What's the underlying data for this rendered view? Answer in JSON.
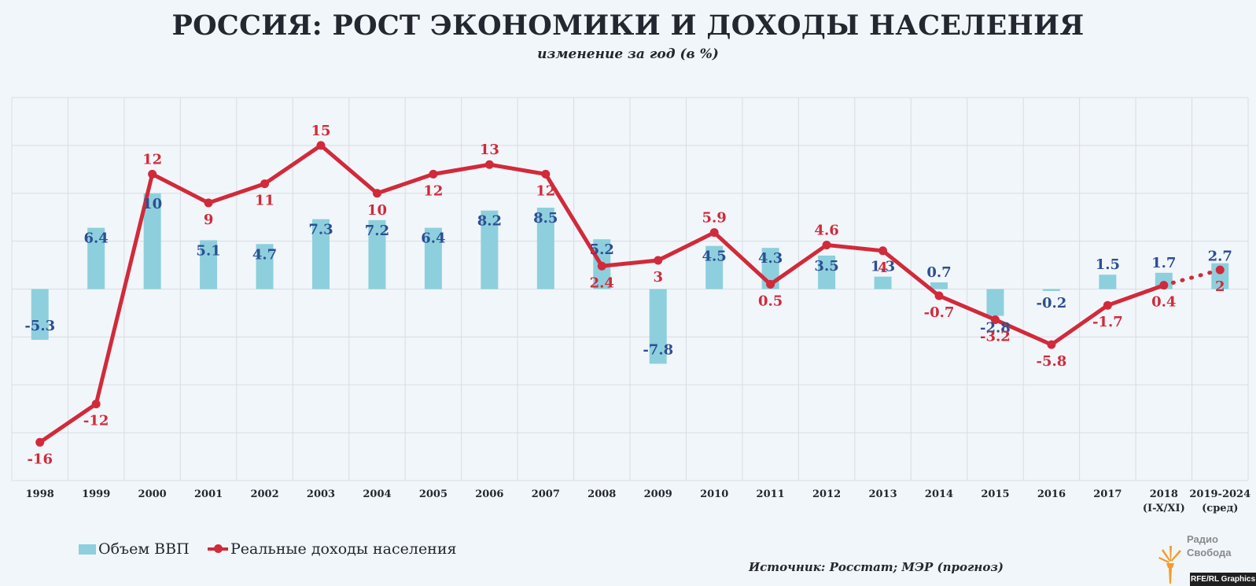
{
  "title": "РОССИЯ: РОСТ ЭКОНОМИКИ И ДОХОДЫ НАСЕЛЕНИЯ",
  "subtitle": "изменение за год (в %)",
  "legend": {
    "bars_label": "Объем ВВП",
    "line_label": "Реальные доходы населения"
  },
  "source": "Источник: Росстат; МЭР (прогноз)",
  "logo": {
    "line1": "Радио",
    "line2": "Свобода"
  },
  "credit": "RFE/RL Graphics",
  "colors": {
    "bar": "#8ecfdd",
    "bar_label": "#2b4f93",
    "line": "#d12a3a",
    "grid": "#d7dde3",
    "logo": "#f59b2a"
  },
  "chart_data": {
    "type": "bar+line",
    "title": "РОССИЯ: РОСТ ЭКОНОМИКИ И ДОХОДЫ НАСЕЛЕНИЯ",
    "subtitle": "изменение за год (в %)",
    "categories": [
      [
        "1998"
      ],
      [
        "1999"
      ],
      [
        "2000"
      ],
      [
        "2001"
      ],
      [
        "2002"
      ],
      [
        "2003"
      ],
      [
        "2004"
      ],
      [
        "2005"
      ],
      [
        "2006"
      ],
      [
        "2007"
      ],
      [
        "2008"
      ],
      [
        "2009"
      ],
      [
        "2010"
      ],
      [
        "2011"
      ],
      [
        "2012"
      ],
      [
        "2013"
      ],
      [
        "2014"
      ],
      [
        "2015"
      ],
      [
        "2016"
      ],
      [
        "2017"
      ],
      [
        "2018",
        "(I-X/XI)"
      ],
      [
        "2019-2024",
        "(сред)"
      ]
    ],
    "series": [
      {
        "name": "Объем ВВП",
        "type": "bar",
        "values": [
          -5.3,
          6.4,
          10,
          5.1,
          4.7,
          7.3,
          7.2,
          6.4,
          8.2,
          8.5,
          5.2,
          -7.8,
          4.5,
          4.3,
          3.5,
          1.3,
          0.7,
          -2.8,
          -0.2,
          1.5,
          1.7,
          2.7
        ],
        "labels": [
          "-5.3",
          "6.4",
          "10",
          "5.1",
          "4.7",
          "7.3",
          "7.2",
          "6.4",
          "8.2",
          "8.5",
          "5.2",
          "-7.8",
          "4.5",
          "4.3",
          "3.5",
          "1.3",
          "0.7",
          "-2.8",
          "-0.2",
          "1.5",
          "1.7",
          "2.7"
        ]
      },
      {
        "name": "Реальные доходы населения",
        "type": "line",
        "values": [
          -16,
          -12,
          12,
          9,
          11,
          15,
          10,
          12,
          13,
          12,
          2.4,
          3,
          5.9,
          0.5,
          4.6,
          4,
          -0.7,
          -3.2,
          -5.8,
          -1.7,
          0.4,
          2
        ],
        "labels": [
          "-16",
          "-12",
          "12",
          "9",
          "11",
          "15",
          "10",
          "12",
          "13",
          "12",
          "2.4",
          "3",
          "5.9",
          "0.5",
          "4.6",
          "4",
          "-0.7",
          "-3.2",
          "-5.8",
          "-1.7",
          "0.4",
          "2"
        ],
        "dotted_last_segment": true
      }
    ],
    "ylim": [
      -20,
      20
    ],
    "grid": true,
    "legend_position": "bottom-left"
  }
}
